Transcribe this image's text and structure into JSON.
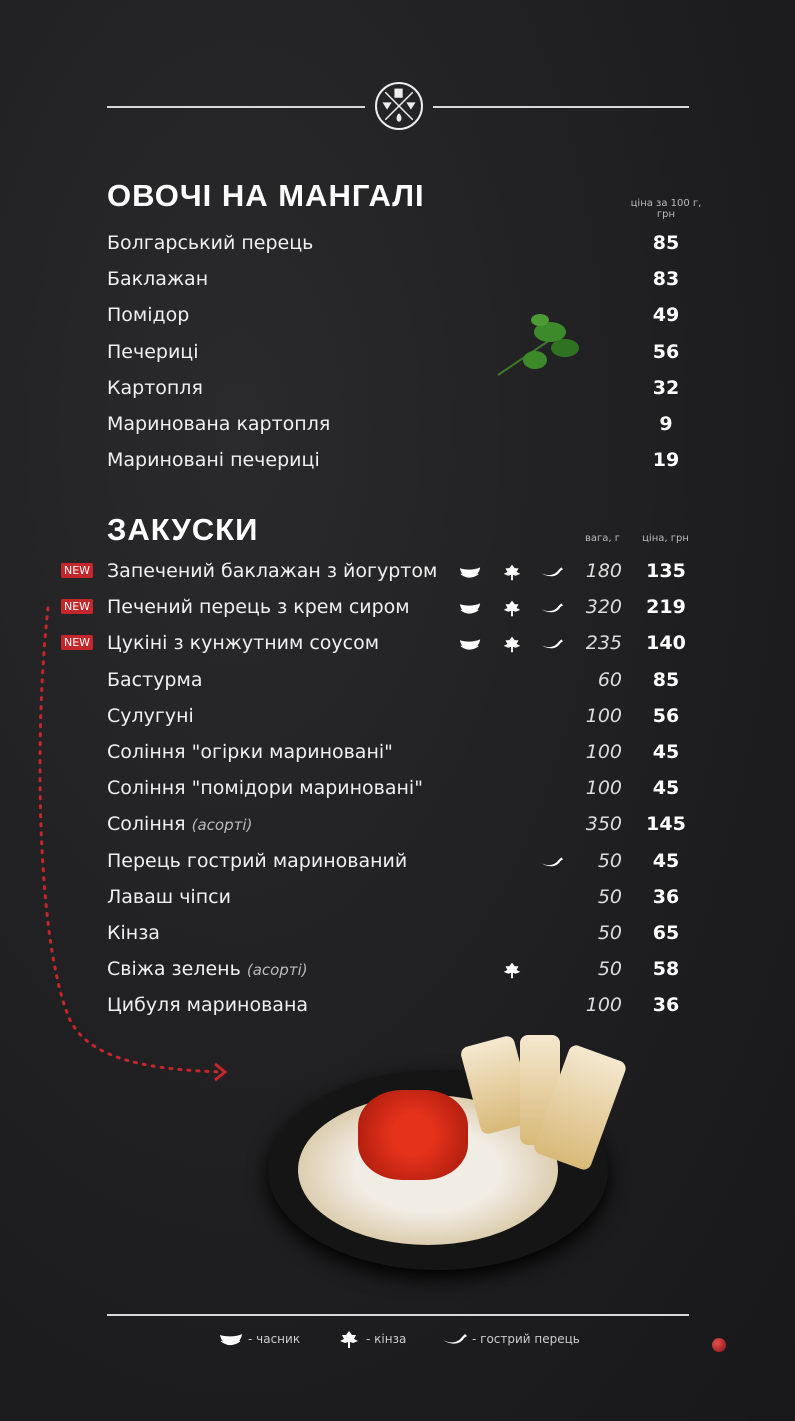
{
  "vegetables": {
    "title": "ОВОЧІ НА МАНГАЛІ",
    "price_header": "ціна за 100 г, грн",
    "items": [
      {
        "name": "Болгарський перець",
        "price": "85"
      },
      {
        "name": "Баклажан",
        "price": "83"
      },
      {
        "name": "Помідор",
        "price": "49"
      },
      {
        "name": "Печериці",
        "price": "56"
      },
      {
        "name": "Картопля",
        "price": "32"
      },
      {
        "name": "Маринована картопля",
        "price": "9"
      },
      {
        "name": "Мариновані печериці",
        "price": "19"
      }
    ]
  },
  "snacks": {
    "title": "ЗАКУСКИ",
    "weight_header": "вага, г",
    "price_header": "ціна, грн",
    "items": [
      {
        "new": "NEW",
        "name": "Запечений баклажан з йогуртом",
        "garlic": true,
        "cilantro": true,
        "hot": true,
        "weight": "180",
        "price": "135"
      },
      {
        "new": "NEW",
        "name": "Печений перець з крем сиром",
        "garlic": true,
        "cilantro": true,
        "hot": true,
        "weight": "320",
        "price": "219"
      },
      {
        "new": "NEW",
        "name": "Цукіні з кунжутним соусом",
        "garlic": true,
        "cilantro": true,
        "hot": true,
        "weight": "235",
        "price": "140"
      },
      {
        "name": "Бастурма",
        "weight": "60",
        "price": "85"
      },
      {
        "name": "Сулугуні",
        "weight": "100",
        "price": "56"
      },
      {
        "name": "Соління \"огірки мариновані\"",
        "weight": "100",
        "price": "45"
      },
      {
        "name": "Соління \"помідори мариновані\"",
        "weight": "100",
        "price": "45"
      },
      {
        "name": "Соління",
        "note": "(асорті)",
        "weight": "350",
        "price": "145"
      },
      {
        "name": "Перець гострий маринований",
        "hot": true,
        "weight": "50",
        "price": "45"
      },
      {
        "name": "Лаваш чіпси",
        "weight": "50",
        "price": "36"
      },
      {
        "name": "Кінза",
        "weight": "50",
        "price": "65"
      },
      {
        "name": "Свіжа зелень",
        "note": "(асорті)",
        "cilantro": true,
        "weight": "50",
        "price": "58"
      },
      {
        "name": "Цибуля маринована",
        "weight": "100",
        "price": "36"
      }
    ]
  },
  "legend": {
    "garlic": "- часник",
    "cilantro": "- кінза",
    "hot": "- гострий перець"
  },
  "colors": {
    "background": "#1f1f21",
    "new_badge": "#c4272b",
    "arrow": "#c4272b"
  }
}
